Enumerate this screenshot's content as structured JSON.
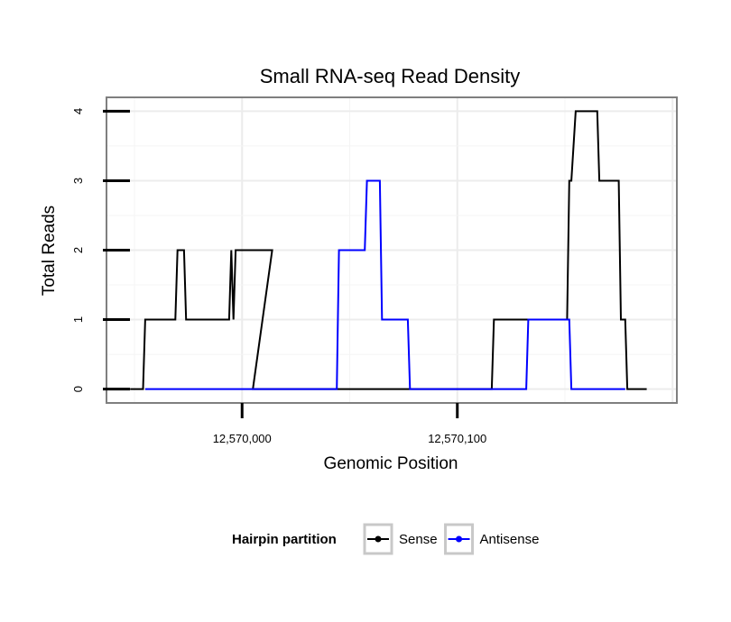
{
  "chart_data": {
    "type": "line",
    "title": "Small RNA-seq Read Density",
    "xlabel": "Genomic Position",
    "ylabel": "Total Reads",
    "xlim": [
      12569937,
      12570202
    ],
    "ylim": [
      -0.2,
      4.2
    ],
    "x_ticks": [
      {
        "value": 12570000,
        "label": "12,570,000"
      },
      {
        "value": 12570100,
        "label": "12,570,100"
      }
    ],
    "y_ticks": [
      {
        "value": 0,
        "label": "0"
      },
      {
        "value": 1,
        "label": "1"
      },
      {
        "value": 2,
        "label": "2"
      },
      {
        "value": 3,
        "label": "3"
      },
      {
        "value": 4,
        "label": "4"
      }
    ],
    "grid": true,
    "legend_title": "Hairpin partition",
    "legend_position": "bottom",
    "series": [
      {
        "name": "Sense",
        "color": "#000000",
        "x": [
          12569948,
          12569954,
          12569955,
          12569969,
          12569970,
          12569973,
          12569974,
          12569994,
          12569995,
          12569996,
          12569997,
          12570003,
          12570014,
          12570005,
          12570048,
          12570116,
          12570117,
          12570151,
          12570152,
          12570153,
          12570155,
          12570165,
          12570166,
          12570175,
          12570176,
          12570178,
          12570179,
          12570188
        ],
        "y": [
          0,
          0,
          1,
          1,
          2,
          2,
          1,
          1,
          2,
          1,
          2,
          2,
          2,
          0,
          0,
          0,
          1,
          1,
          3,
          3,
          4,
          4,
          3,
          3,
          1,
          1,
          0,
          0
        ]
      },
      {
        "name": "Antisense",
        "color": "#0000ff",
        "x": [
          12569955,
          12570044,
          12570045,
          12570057,
          12570058,
          12570064,
          12570065,
          12570077,
          12570078,
          12570132,
          12570133,
          12570152,
          12570153,
          12570178
        ],
        "y": [
          0,
          0,
          2,
          2,
          3,
          3,
          1,
          1,
          0,
          0,
          1,
          1,
          0,
          0
        ]
      }
    ]
  }
}
